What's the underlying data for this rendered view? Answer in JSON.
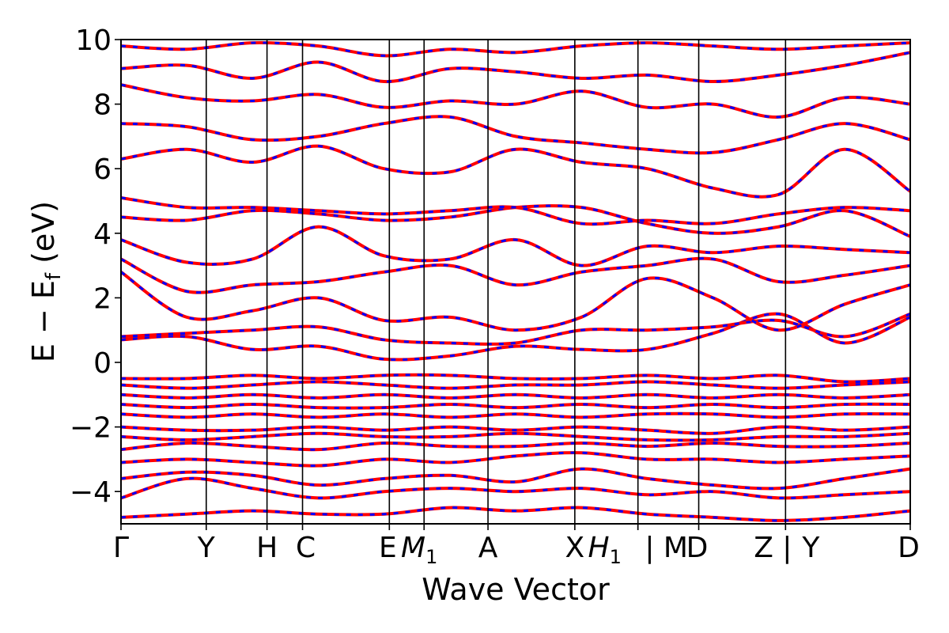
{
  "chart_data": {
    "type": "line",
    "title": "",
    "xlabel": "Wave Vector",
    "ylabel": "E − E_f (eV)",
    "ylim": [
      -5,
      10
    ],
    "y_ticks": [
      -4,
      -2,
      0,
      2,
      4,
      6,
      8,
      10
    ],
    "y_tick_labels": [
      "−4",
      "−2",
      "0",
      "2",
      "4",
      "6",
      "8",
      "10"
    ],
    "path_ticks": [
      {
        "label": "Γ",
        "pos": 0.0
      },
      {
        "label": "Y",
        "pos": 0.108
      },
      {
        "label": "H",
        "pos": 0.185
      },
      {
        "label": "C",
        "pos": 0.23
      },
      {
        "label": "E",
        "pos": 0.34
      },
      {
        "label": "M",
        "sub": "1",
        "pos": 0.384
      },
      {
        "label": "A",
        "pos": 0.465
      },
      {
        "label": "X",
        "pos": 0.575
      },
      {
        "label": "H",
        "sub": "1",
        "pos": 0.655
      },
      {
        "label": "| M",
        "pos": 0.655
      },
      {
        "label": "D",
        "pos": 0.732
      },
      {
        "label": "Z | Y",
        "pos": 0.842
      },
      {
        "label": "D",
        "pos": 1.0
      }
    ],
    "x_tick_label_text": [
      "Γ",
      "Y",
      "H",
      "C",
      "E",
      "M",
      "X",
      "H",
      "| M",
      "D",
      "Z",
      "| Y",
      "D",
      "A"
    ],
    "series_style": [
      {
        "color": "#ff0000",
        "dash": "solid"
      },
      {
        "color": "#0000ff",
        "dash": "dashed"
      }
    ],
    "bands": [
      {
        "y": [
          -4.8,
          -4.7,
          -4.6,
          -4.7,
          -4.7,
          -4.5,
          -4.6,
          -4.5,
          -4.7,
          -4.8,
          -4.9,
          -4.8,
          -4.6
        ]
      },
      {
        "y": [
          -4.2,
          -3.6,
          -3.9,
          -4.2,
          -4.0,
          -3.9,
          -4.0,
          -3.9,
          -4.1,
          -4.0,
          -4.2,
          -4.1,
          -4.0
        ]
      },
      {
        "y": [
          -3.6,
          -3.4,
          -3.5,
          -3.8,
          -3.6,
          -3.5,
          -3.7,
          -3.3,
          -3.6,
          -3.8,
          -3.9,
          -3.6,
          -3.3
        ]
      },
      {
        "y": [
          -3.1,
          -3.0,
          -3.1,
          -3.2,
          -3.0,
          -3.1,
          -2.9,
          -2.8,
          -3.0,
          -3.0,
          -3.1,
          -3.0,
          -2.9
        ]
      },
      {
        "y": [
          -2.7,
          -2.5,
          -2.6,
          -2.7,
          -2.5,
          -2.6,
          -2.6,
          -2.5,
          -2.6,
          -2.5,
          -2.6,
          -2.6,
          -2.5
        ]
      },
      {
        "y": [
          -2.3,
          -2.4,
          -2.3,
          -2.2,
          -2.3,
          -2.3,
          -2.2,
          -2.3,
          -2.4,
          -2.4,
          -2.3,
          -2.3,
          -2.2
        ]
      },
      {
        "y": [
          -2.0,
          -2.1,
          -2.1,
          -2.0,
          -2.1,
          -2.0,
          -2.1,
          -2.0,
          -2.1,
          -2.2,
          -2.0,
          -2.1,
          -2.0
        ]
      },
      {
        "y": [
          -1.6,
          -1.7,
          -1.6,
          -1.7,
          -1.6,
          -1.7,
          -1.6,
          -1.7,
          -1.6,
          -1.6,
          -1.7,
          -1.6,
          -1.6
        ]
      },
      {
        "y": [
          -1.3,
          -1.4,
          -1.3,
          -1.4,
          -1.4,
          -1.3,
          -1.4,
          -1.3,
          -1.4,
          -1.3,
          -1.4,
          -1.3,
          -1.3
        ]
      },
      {
        "y": [
          -1.0,
          -1.1,
          -1.0,
          -1.1,
          -1.0,
          -1.1,
          -1.0,
          -1.1,
          -1.0,
          -1.1,
          -1.0,
          -1.1,
          -1.0
        ]
      },
      {
        "y": [
          -0.7,
          -0.8,
          -0.7,
          -0.6,
          -0.7,
          -0.8,
          -0.7,
          -0.7,
          -0.6,
          -0.7,
          -0.8,
          -0.7,
          -0.6
        ]
      },
      {
        "y": [
          -0.5,
          -0.5,
          -0.4,
          -0.5,
          -0.4,
          -0.4,
          -0.5,
          -0.5,
          -0.4,
          -0.5,
          -0.4,
          -0.6,
          -0.5
        ]
      },
      {
        "y": [
          0.7,
          0.8,
          0.4,
          0.5,
          0.1,
          0.2,
          0.5,
          0.4,
          0.4,
          0.9,
          1.5,
          0.6,
          1.4
        ]
      },
      {
        "y": [
          0.8,
          0.9,
          1.0,
          1.1,
          0.7,
          0.6,
          0.6,
          1.0,
          1.0,
          1.1,
          1.3,
          0.8,
          1.5
        ]
      },
      {
        "y": [
          2.8,
          1.4,
          1.6,
          2.0,
          1.3,
          1.4,
          1.0,
          1.4,
          2.6,
          2.0,
          1.0,
          1.8,
          2.4
        ]
      },
      {
        "y": [
          3.2,
          2.2,
          2.4,
          2.5,
          2.8,
          3.0,
          2.4,
          2.8,
          3.0,
          3.2,
          2.5,
          2.7,
          3.0
        ]
      },
      {
        "y": [
          3.8,
          3.1,
          3.2,
          4.2,
          3.3,
          3.2,
          3.8,
          3.0,
          3.6,
          3.4,
          3.6,
          3.5,
          3.4
        ]
      },
      {
        "y": [
          4.5,
          4.4,
          4.7,
          4.6,
          4.4,
          4.5,
          4.8,
          4.8,
          4.3,
          4.0,
          4.2,
          4.7,
          3.9
        ]
      },
      {
        "y": [
          5.1,
          4.8,
          4.8,
          4.7,
          4.6,
          4.7,
          4.8,
          4.3,
          4.4,
          4.3,
          4.6,
          4.8,
          4.7
        ]
      },
      {
        "y": [
          6.3,
          6.6,
          6.2,
          6.7,
          6.0,
          5.9,
          6.6,
          6.2,
          6.0,
          5.4,
          5.2,
          6.6,
          5.3
        ]
      },
      {
        "y": [
          7.4,
          7.3,
          6.9,
          7.0,
          7.4,
          7.6,
          7.0,
          6.8,
          6.6,
          6.5,
          6.9,
          7.4,
          6.9
        ]
      },
      {
        "y": [
          8.6,
          8.2,
          8.1,
          8.3,
          7.9,
          8.1,
          8.0,
          8.4,
          7.9,
          8.0,
          7.6,
          8.2,
          8.0
        ]
      },
      {
        "y": [
          9.1,
          9.2,
          8.8,
          9.3,
          8.7,
          9.1,
          9.0,
          8.8,
          8.9,
          8.7,
          8.9,
          9.2,
          9.6
        ]
      },
      {
        "y": [
          9.8,
          9.7,
          9.9,
          9.8,
          9.5,
          9.7,
          9.6,
          9.8,
          9.9,
          9.8,
          9.7,
          9.8,
          9.9
        ]
      }
    ],
    "grid": false
  }
}
